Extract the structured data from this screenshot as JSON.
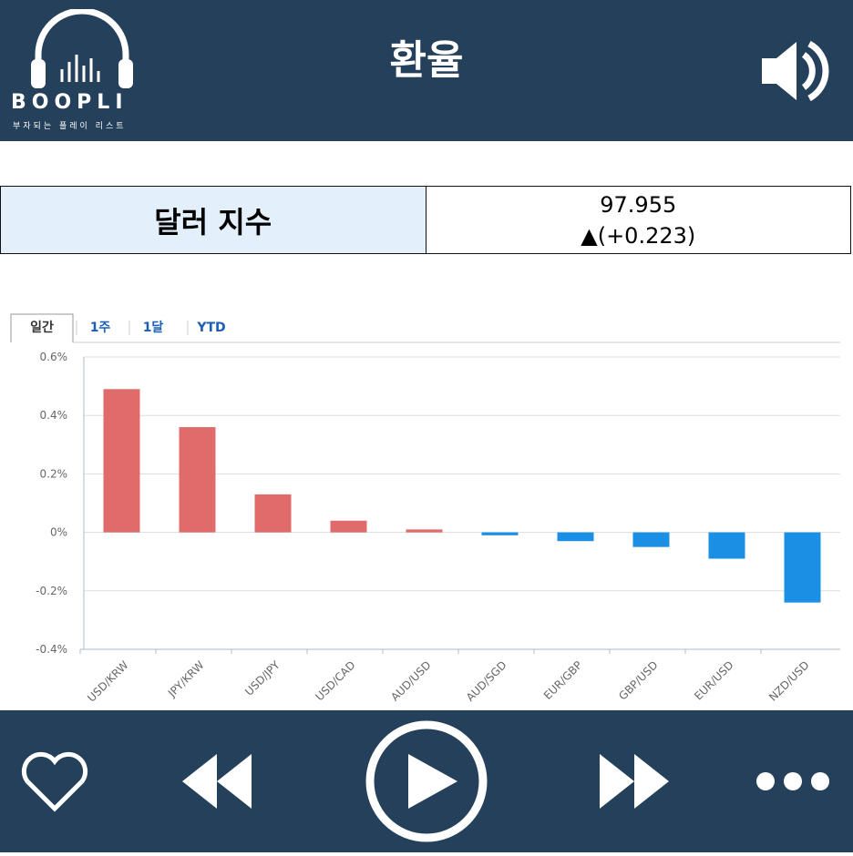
{
  "header": {
    "title": "환율",
    "logo": "BOOPLI",
    "tagline": "부자되는 플레이 리스트"
  },
  "index": {
    "label": "달러 지수",
    "value": "97.955",
    "change": "▲(+0.223)"
  },
  "tabs": [
    "일간",
    "1주",
    "1달",
    "YTD"
  ],
  "chart_data": {
    "type": "bar",
    "categories": [
      "USD/KRW",
      "JPY/KRW",
      "USD/JPY",
      "USD/CAD",
      "AUD/USD",
      "AUD/SGD",
      "EUR/GBP",
      "GBP/USD",
      "EUR/USD",
      "NZD/USD"
    ],
    "values": [
      0.49,
      0.36,
      0.13,
      0.04,
      0.01,
      -0.01,
      -0.03,
      -0.05,
      -0.09,
      -0.24
    ],
    "color": "#e06b6b",
    "negative_color": "#1a8fe3",
    "ylim": [
      -0.4,
      0.6
    ],
    "yticks": [
      {
        "value": -0.4,
        "label": "-0.4%"
      },
      {
        "value": -0.2,
        "label": "-0.2%"
      },
      {
        "value": 0,
        "label": "0%"
      },
      {
        "value": 0.2,
        "label": "0.2%"
      },
      {
        "value": 0.4,
        "label": "0.4%"
      },
      {
        "value": 0.6,
        "label": "0.6%"
      }
    ],
    "grid": true
  }
}
